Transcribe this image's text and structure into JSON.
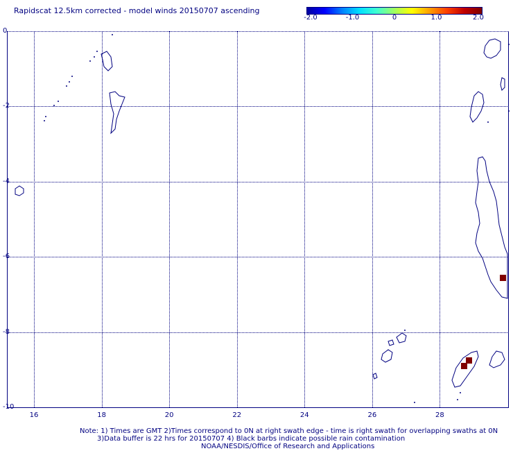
{
  "title": "Rapidscat 12.5km corrected - model winds 20150707 ascending",
  "colorbar": {
    "ticks": [
      "-2.0",
      "-1.0",
      "0",
      "1.0",
      "2.0"
    ],
    "range": [
      -2.0,
      2.0
    ],
    "colors": [
      "#0000a0",
      "#0000ff",
      "#0080ff",
      "#00e0ff",
      "#40ffd0",
      "#a0ff60",
      "#ffff00",
      "#ffa000",
      "#ff4000",
      "#c00000",
      "#800000"
    ]
  },
  "map": {
    "lon_ticks": [
      "16",
      "18",
      "20",
      "22",
      "24",
      "26",
      "28"
    ],
    "lat_ticks": [
      "0",
      "-2",
      "-4",
      "-6",
      "-8",
      "-10"
    ],
    "lon_range": [
      15.2,
      30
    ],
    "lat_range": [
      -10,
      0
    ],
    "coastline_color": "#000080",
    "grid_color": "#000080"
  },
  "chart_data": {
    "type": "heatmap",
    "title": "Rapidscat 12.5km corrected - model winds 20150707 ascending",
    "colorbar_range": [
      -2.0,
      2.0
    ],
    "points": [
      {
        "lon": 29.85,
        "lat": -6.55,
        "value": 2.0,
        "color": "#800000"
      },
      {
        "lon": 28.85,
        "lat": -8.75,
        "value": 2.0,
        "color": "#800000"
      },
      {
        "lon": 28.7,
        "lat": -8.9,
        "value": 2.0,
        "color": "#800000"
      }
    ]
  },
  "notes": {
    "line1": "Note: 1) Times are GMT 2)Times correspond to 0N at right swath edge - time is right swath for overlapping swaths at 0N",
    "line2": "3)Data buffer is 22 hrs for 20150707 4) Black barbs indicate possible rain contamination",
    "line3": "NOAA/NESDIS/Office of Research and Applications"
  }
}
